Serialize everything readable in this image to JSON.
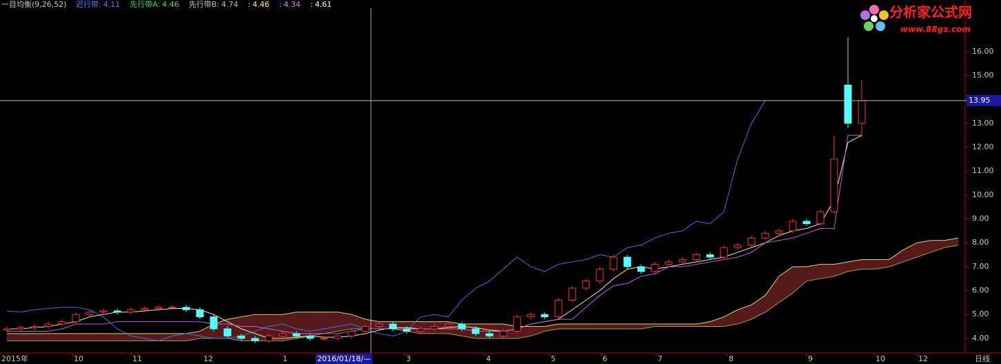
{
  "header": {
    "title": "一目均衡(9,26,52)",
    "items": [
      {
        "label": "迟行带:",
        "value": 4.11,
        "color": "#5a7cff"
      },
      {
        "label": "先行带A:",
        "value": 4.46,
        "color": "#3ce03c"
      },
      {
        "label": "先行带B:",
        "value": 4.74,
        "color": "#c0c0c0"
      },
      {
        "label": ":",
        "value": 4.46,
        "color": "#ffff50"
      },
      {
        "label": ":",
        "value": 4.34,
        "color": "#e080ff"
      },
      {
        "label": ":",
        "value": 4.61,
        "color": "#ffffff"
      }
    ]
  },
  "watermark": {
    "site": "分析家公式网",
    "url": "www.88gs.com"
  },
  "chart_data": {
    "type": "candlestick",
    "period": "日线",
    "xlim": [
      0,
      70
    ],
    "xticks": [
      {
        "value": 0,
        "label": "2015年"
      },
      {
        "value": 5.25,
        "label": "10"
      },
      {
        "value": 9.5,
        "label": "11"
      },
      {
        "value": 14.65,
        "label": "12"
      },
      {
        "value": 20.4,
        "label": "1"
      },
      {
        "value": 29.35,
        "label": "3"
      },
      {
        "value": 35.15,
        "label": "4"
      },
      {
        "value": 39.85,
        "label": "5"
      },
      {
        "value": 43.6,
        "label": "6"
      },
      {
        "value": 47.6,
        "label": "7"
      },
      {
        "value": 52.75,
        "label": "8"
      },
      {
        "value": 58.5,
        "label": "9"
      },
      {
        "value": 63.4,
        "label": "10"
      },
      {
        "value": 66.5,
        "label": "12"
      }
    ],
    "ylim": [
      3.39,
      18.16
    ],
    "yticks": [
      {
        "value": 4,
        "label": "4.00"
      },
      {
        "value": 5,
        "label": "5.00"
      },
      {
        "value": 6,
        "label": "6.00"
      },
      {
        "value": 7,
        "label": "7.00"
      },
      {
        "value": 8,
        "label": "8.00"
      },
      {
        "value": 9,
        "label": "9.00"
      },
      {
        "value": 10,
        "label": "10.00"
      },
      {
        "value": 11,
        "label": "11.00"
      },
      {
        "value": 12,
        "label": "12.00"
      },
      {
        "value": 13,
        "label": "13.00"
      },
      {
        "value": 14,
        "label": "14.00"
      },
      {
        "value": 15,
        "label": "15.00"
      },
      {
        "value": 16,
        "label": "16.00"
      }
    ],
    "crosshair": {
      "x": 26.9,
      "y": 13.95,
      "x_label": "2016/01/18/—"
    },
    "candles": {
      "up_color": "#ff3232",
      "down_color": "#54fcfc",
      "open": [
        4.35,
        4.4,
        4.45,
        4.5,
        4.6,
        4.7,
        5.0,
        5.1,
        5.15,
        5.1,
        5.2,
        5.25,
        5.3,
        5.3,
        5.2,
        4.9,
        4.4,
        4.1,
        4.0,
        3.9,
        4.1,
        4.2,
        4.1,
        4.0,
        4.0,
        4.1,
        4.3,
        4.5,
        4.6,
        4.4,
        4.3,
        4.4,
        4.5,
        4.6,
        4.4,
        4.2,
        4.1,
        4.3,
        4.9,
        5.0,
        4.9,
        5.6,
        6.1,
        6.4,
        6.9,
        7.4,
        7.0,
        6.8,
        7.1,
        7.2,
        7.3,
        7.5,
        7.4,
        7.8,
        7.9,
        8.2,
        8.4,
        8.5,
        8.9,
        8.8,
        9.3,
        14.6,
        13.0
      ],
      "high": [
        4.5,
        4.55,
        4.6,
        4.7,
        4.8,
        5.1,
        5.2,
        5.25,
        5.25,
        5.3,
        5.35,
        5.4,
        5.4,
        5.4,
        5.3,
        5.0,
        4.5,
        4.2,
        4.1,
        4.2,
        4.3,
        4.3,
        4.2,
        4.1,
        4.2,
        4.4,
        4.6,
        4.7,
        4.7,
        4.5,
        4.5,
        4.6,
        4.7,
        4.7,
        4.5,
        4.3,
        4.4,
        5.0,
        5.1,
        5.1,
        5.7,
        6.2,
        6.5,
        7.0,
        7.5,
        7.5,
        7.1,
        7.2,
        7.3,
        7.4,
        7.6,
        7.6,
        7.9,
        8.0,
        8.3,
        8.5,
        8.6,
        9.0,
        9.0,
        9.4,
        12.5,
        16.6,
        14.8
      ],
      "low": [
        4.25,
        4.3,
        4.35,
        4.4,
        4.5,
        4.6,
        4.9,
        5.0,
        5.0,
        5.0,
        5.1,
        5.15,
        5.2,
        5.1,
        4.8,
        4.3,
        4.0,
        3.9,
        3.8,
        3.8,
        4.0,
        4.0,
        3.9,
        3.9,
        3.9,
        4.0,
        4.2,
        4.4,
        4.3,
        4.2,
        4.2,
        4.3,
        4.4,
        4.3,
        4.1,
        4.0,
        4.0,
        4.2,
        4.8,
        4.8,
        4.8,
        5.5,
        6.0,
        6.3,
        6.8,
        6.9,
        6.7,
        6.7,
        7.0,
        7.1,
        7.2,
        7.3,
        7.3,
        7.7,
        7.8,
        8.1,
        8.3,
        8.4,
        8.7,
        8.7,
        9.2,
        12.8,
        12.4
      ],
      "close": [
        4.4,
        4.45,
        4.5,
        4.6,
        4.7,
        5.0,
        5.1,
        5.15,
        5.1,
        5.2,
        5.25,
        5.3,
        5.3,
        5.2,
        4.9,
        4.4,
        4.1,
        4.0,
        3.9,
        4.1,
        4.2,
        4.1,
        4.0,
        4.0,
        4.1,
        4.3,
        4.5,
        4.6,
        4.4,
        4.3,
        4.4,
        4.5,
        4.6,
        4.4,
        4.2,
        4.1,
        4.3,
        4.9,
        5.0,
        4.9,
        5.6,
        6.1,
        6.4,
        6.9,
        7.4,
        7.0,
        6.8,
        7.1,
        7.2,
        7.3,
        7.5,
        7.4,
        7.8,
        7.9,
        8.2,
        8.4,
        8.5,
        8.9,
        8.8,
        9.3,
        11.5,
        13.0,
        13.95
      ]
    },
    "cloud": {
      "a": 0,
      "b": 1,
      "up_color": "#c03a3a",
      "down_color": "#3a9a3a"
    },
    "series": [
      {
        "color": "#d8d860",
        "values": [
          4.2,
          4.2,
          4.2,
          4.2,
          4.2,
          4.2,
          4.2,
          4.2,
          4.2,
          4.2,
          4.2,
          4.2,
          4.2,
          4.2,
          4.3,
          4.6,
          4.8,
          4.9,
          5.0,
          5.0,
          5.0,
          5.1,
          5.1,
          5.1,
          5.1,
          5.0,
          4.8,
          4.7,
          4.7,
          4.7,
          4.7,
          4.7,
          4.7,
          4.6,
          4.6,
          4.6,
          4.6,
          4.5,
          4.5,
          4.5,
          4.6,
          4.6,
          4.6,
          4.6,
          4.6,
          4.6,
          4.6,
          4.6,
          4.6,
          4.6,
          4.6,
          4.7,
          4.9,
          5.2,
          5.4,
          5.8,
          6.6,
          7.0,
          7.0,
          7.1,
          7.1,
          7.2,
          7.3,
          7.3,
          7.3,
          7.7,
          8.0,
          8.1,
          8.1,
          8.2
        ]
      },
      {
        "color": "#a0a040",
        "values": [
          3.9,
          3.9,
          3.9,
          3.9,
          3.9,
          3.9,
          3.9,
          3.9,
          3.9,
          3.9,
          3.9,
          3.9,
          3.9,
          3.9,
          4.0,
          4.0,
          4.0,
          3.9,
          3.9,
          3.9,
          3.9,
          4.0,
          4.1,
          4.2,
          4.3,
          4.4,
          4.4,
          4.4,
          4.4,
          4.3,
          4.2,
          4.2,
          4.2,
          4.1,
          4.0,
          4.0,
          4.0,
          4.0,
          4.1,
          4.3,
          4.4,
          4.4,
          4.4,
          4.4,
          4.4,
          4.4,
          4.4,
          4.5,
          4.5,
          4.5,
          4.5,
          4.5,
          4.5,
          4.6,
          4.8,
          5.1,
          5.5,
          5.9,
          6.4,
          6.5,
          6.6,
          6.8,
          6.9,
          6.9,
          7.0,
          7.2,
          7.4,
          7.6,
          7.8,
          7.9
        ]
      },
      {
        "color": "#4a6cf0",
        "values": [
          5.15,
          5.1,
          5.2,
          5.25,
          5.3,
          5.3,
          5.2,
          4.9,
          4.4,
          4.1,
          4.0,
          3.9,
          4.1,
          4.2,
          4.1,
          4.0,
          4.0,
          4.1,
          4.3,
          4.5,
          4.6,
          4.4,
          4.3,
          4.4,
          4.5,
          4.6,
          4.4,
          4.2,
          4.1,
          4.3,
          4.9,
          5.0,
          4.9,
          5.6,
          6.1,
          6.4,
          6.9,
          7.4,
          7.0,
          6.8,
          7.1,
          7.2,
          7.3,
          7.5,
          7.4,
          7.8,
          7.9,
          8.2,
          8.4,
          8.5,
          8.9,
          8.8,
          9.3,
          11.5,
          13.0,
          13.95,
          null,
          null,
          null,
          null,
          null,
          null,
          null,
          null,
          null,
          null,
          null,
          null,
          null,
          null
        ]
      },
      {
        "color": "#f0f0b0",
        "values": [
          4.4,
          4.4,
          4.45,
          4.5,
          4.6,
          4.7,
          4.9,
          5.0,
          5.1,
          5.1,
          5.15,
          5.2,
          5.25,
          5.25,
          5.2,
          5.0,
          4.7,
          4.4,
          4.2,
          4.0,
          4.0,
          4.05,
          4.1,
          4.05,
          4.05,
          4.1,
          4.2,
          4.35,
          4.45,
          4.45,
          4.4,
          4.4,
          4.45,
          4.5,
          4.45,
          4.35,
          4.3,
          4.4,
          4.6,
          4.7,
          4.8,
          5.2,
          5.6,
          6.0,
          6.5,
          6.9,
          7.0,
          6.9,
          7.0,
          7.1,
          7.2,
          7.3,
          7.4,
          7.6,
          7.8,
          8.0,
          8.3,
          8.5,
          8.6,
          8.8,
          9.8,
          12.2,
          12.5,
          null,
          null,
          null,
          null,
          null,
          null,
          null
        ]
      },
      {
        "color": "#c060e0",
        "values": [
          4.3,
          4.3,
          4.3,
          4.3,
          4.4,
          4.6,
          4.6,
          4.6,
          4.7,
          4.7,
          4.7,
          4.7,
          4.7,
          4.7,
          4.7,
          4.6,
          4.6,
          4.5,
          4.5,
          4.4,
          4.3,
          4.2,
          4.2,
          4.2,
          4.2,
          4.3,
          4.4,
          4.4,
          4.4,
          4.4,
          4.4,
          4.4,
          4.4,
          4.4,
          4.3,
          4.3,
          4.3,
          4.4,
          4.6,
          4.7,
          4.8,
          4.8,
          5.3,
          5.8,
          6.2,
          6.3,
          6.6,
          6.7,
          7.0,
          7.0,
          7.1,
          7.2,
          7.3,
          7.4,
          7.6,
          8.0,
          8.1,
          8.2,
          8.4,
          8.6,
          8.6,
          12.5,
          12.5,
          null,
          null,
          null,
          null,
          null,
          null,
          null
        ]
      }
    ]
  }
}
